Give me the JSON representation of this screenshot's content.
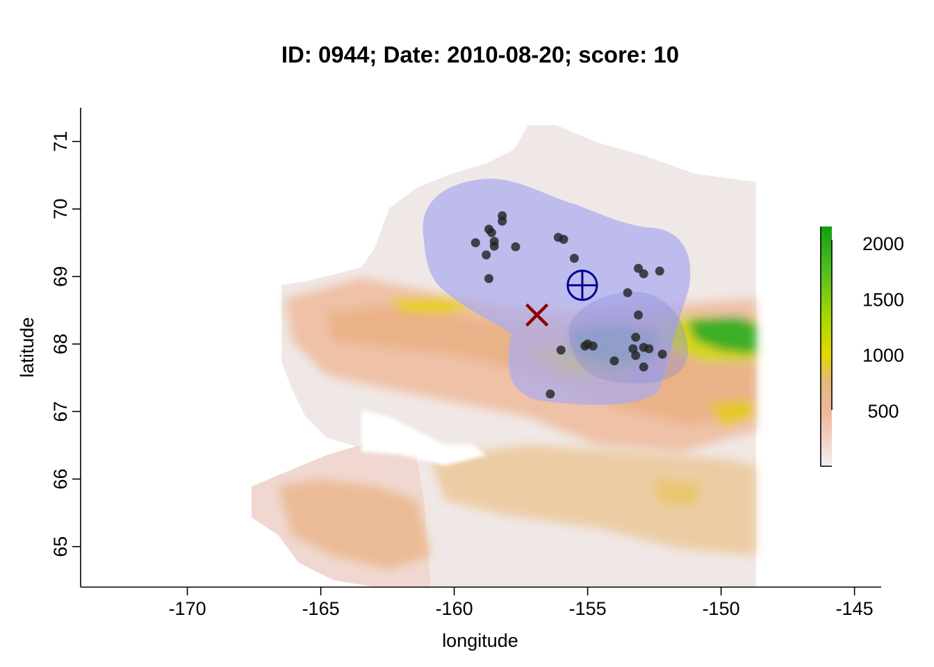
{
  "title": "ID: 0944;  Date: 2010-08-20;  score: 10",
  "chart_data": {
    "type": "map",
    "xlabel": "longitude",
    "ylabel": "latitude",
    "xlim": [
      -174,
      -144
    ],
    "ylim": [
      64.4,
      71.5
    ],
    "xticks": [
      -170,
      -165,
      -160,
      -155,
      -150,
      -145
    ],
    "yticks": [
      65,
      66,
      67,
      68,
      69,
      70,
      71
    ],
    "colorbar": {
      "ticks": [
        500,
        1000,
        1500,
        2000
      ],
      "range": [
        0,
        2150
      ]
    },
    "points": [
      {
        "lon": -159.2,
        "lat": 69.5
      },
      {
        "lon": -158.7,
        "lat": 69.7
      },
      {
        "lon": -158.6,
        "lat": 69.65
      },
      {
        "lon": -158.2,
        "lat": 69.9
      },
      {
        "lon": -158.2,
        "lat": 69.82
      },
      {
        "lon": -158.5,
        "lat": 69.52
      },
      {
        "lon": -158.5,
        "lat": 69.45
      },
      {
        "lon": -158.8,
        "lat": 69.32
      },
      {
        "lon": -157.7,
        "lat": 69.44
      },
      {
        "lon": -156.1,
        "lat": 69.58
      },
      {
        "lon": -155.9,
        "lat": 69.55
      },
      {
        "lon": -155.5,
        "lat": 69.27
      },
      {
        "lon": -158.7,
        "lat": 68.97
      },
      {
        "lon": -153.1,
        "lat": 69.12
      },
      {
        "lon": -152.9,
        "lat": 69.04
      },
      {
        "lon": -152.3,
        "lat": 69.08
      },
      {
        "lon": -153.5,
        "lat": 68.76
      },
      {
        "lon": -153.1,
        "lat": 68.43
      },
      {
        "lon": -156.0,
        "lat": 67.91
      },
      {
        "lon": -155.0,
        "lat": 68.0
      },
      {
        "lon": -154.8,
        "lat": 67.97
      },
      {
        "lon": -155.1,
        "lat": 67.97
      },
      {
        "lon": -153.2,
        "lat": 68.1
      },
      {
        "lon": -153.3,
        "lat": 67.93
      },
      {
        "lon": -153.2,
        "lat": 67.83
      },
      {
        "lon": -152.9,
        "lat": 67.95
      },
      {
        "lon": -152.7,
        "lat": 67.93
      },
      {
        "lon": -152.2,
        "lat": 67.85
      },
      {
        "lon": -152.9,
        "lat": 67.66
      },
      {
        "lon": -154.0,
        "lat": 67.75
      },
      {
        "lon": -156.4,
        "lat": 67.26
      }
    ],
    "centroid": {
      "lon": -155.2,
      "lat": 68.87
    },
    "cross": {
      "lon": -156.9,
      "lat": 68.43
    },
    "colors": {
      "points": "#222222",
      "centroid": "#000099",
      "cross": "#8b0000",
      "region": "#aaaaee",
      "low": "#f2f2f2",
      "mid": "#e8b37d",
      "midhigh": "#e6d000",
      "high": "#18a818"
    }
  }
}
